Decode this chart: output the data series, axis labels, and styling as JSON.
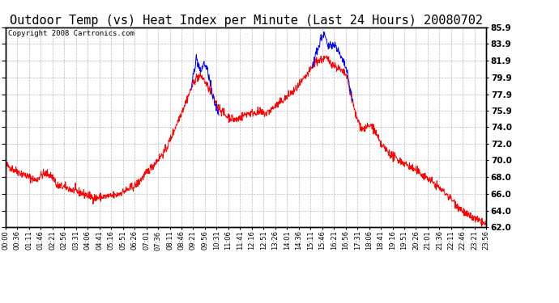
{
  "title": "Outdoor Temp (vs) Heat Index per Minute (Last 24 Hours) 20080702",
  "copyright": "Copyright 2008 Cartronics.com",
  "yticks": [
    62.0,
    64.0,
    66.0,
    68.0,
    70.0,
    72.0,
    74.0,
    75.9,
    77.9,
    79.9,
    81.9,
    83.9,
    85.9
  ],
  "ymin": 62.0,
  "ymax": 85.9,
  "xtick_labels": [
    "00:00",
    "00:36",
    "01:11",
    "01:46",
    "02:21",
    "02:56",
    "03:31",
    "04:06",
    "04:41",
    "05:16",
    "05:51",
    "06:26",
    "07:01",
    "07:36",
    "08:11",
    "08:46",
    "09:21",
    "09:56",
    "10:31",
    "11:06",
    "11:41",
    "12:16",
    "12:51",
    "13:26",
    "14:01",
    "14:36",
    "15:11",
    "15:46",
    "16:21",
    "16:56",
    "17:31",
    "18:06",
    "18:41",
    "19:16",
    "19:51",
    "20:26",
    "21:01",
    "21:36",
    "22:11",
    "22:46",
    "23:21",
    "23:56"
  ],
  "line_color_temp": "#ff0000",
  "line_color_heat": "#0000ff",
  "bg_color": "#ffffff",
  "grid_color": "#aaaaaa",
  "title_fontsize": 11,
  "copyright_fontsize": 6.5
}
